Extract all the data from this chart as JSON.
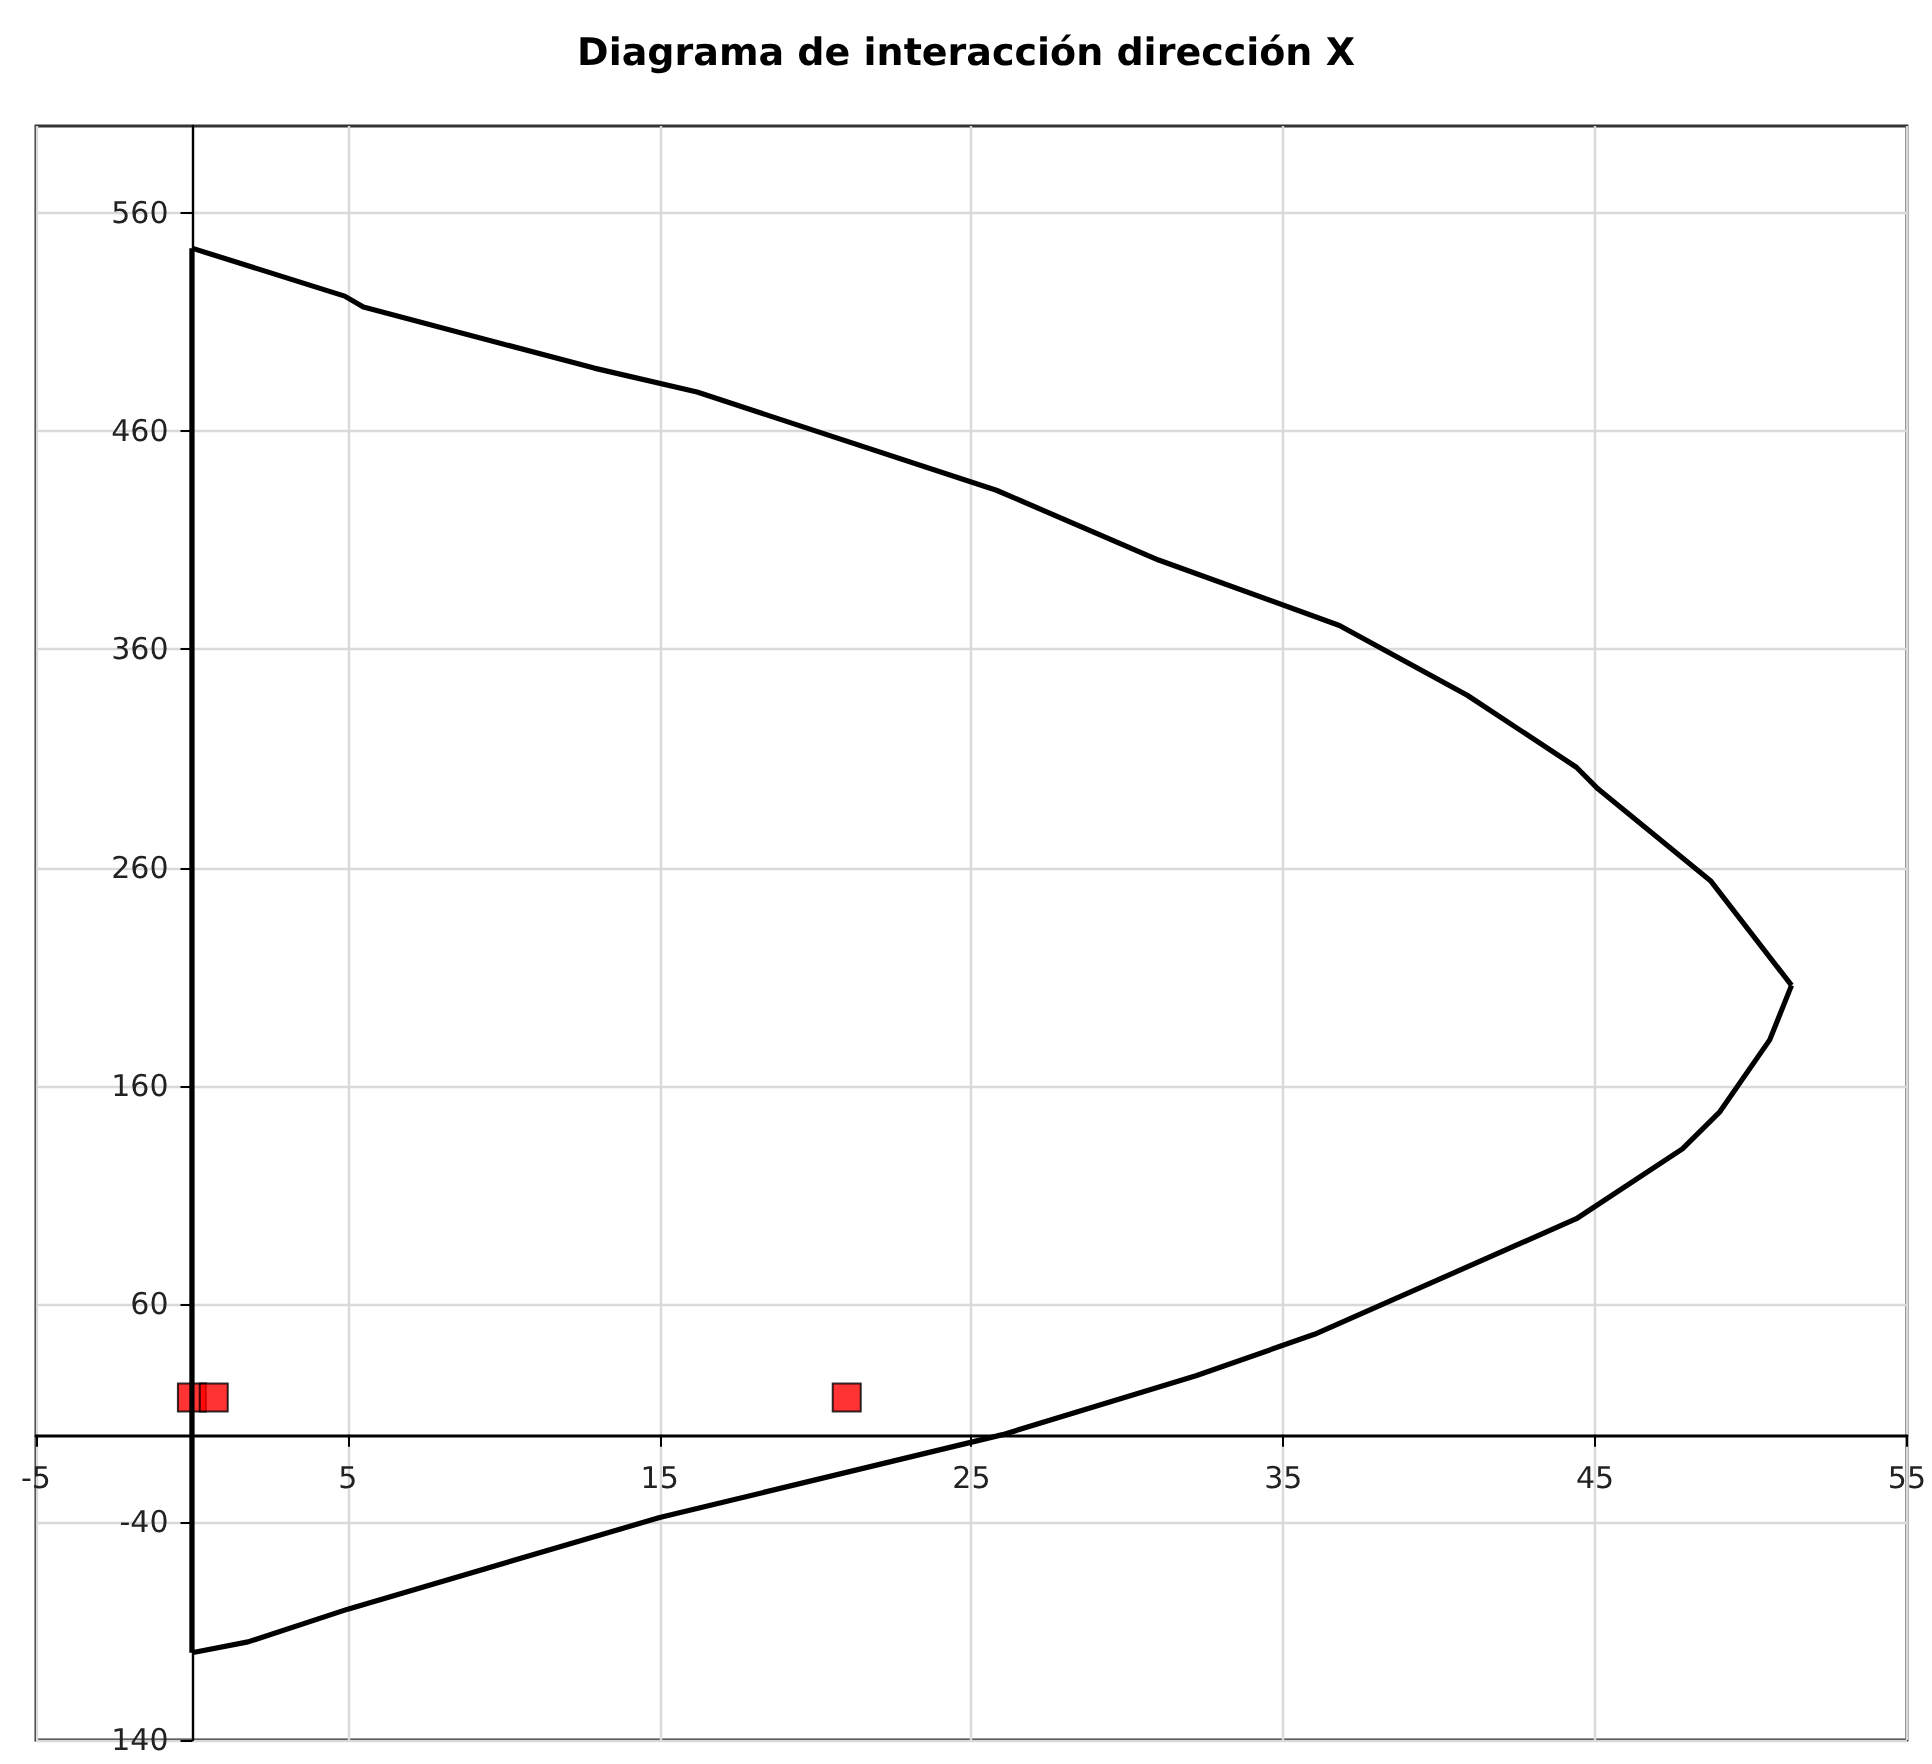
{
  "chart_data": {
    "type": "line",
    "title": "Diagrama de interacción dirección X",
    "xlim": [
      -5,
      55
    ],
    "xticks": [
      -5,
      5,
      15,
      25,
      35,
      45,
      55
    ],
    "ylim": [
      -140,
      600
    ],
    "yticks": [
      {
        "value": -140,
        "label": "140"
      },
      -40,
      60,
      160,
      260,
      360,
      460,
      560
    ],
    "grid": true,
    "series": [
      {
        "color": "#000000",
        "marker": "none",
        "x": [
          0,
          1.8,
          5,
          15,
          26,
          32.2,
          36,
          44.4,
          47.8,
          49,
          50.6,
          51.3
        ],
        "values": [
          -100,
          -95,
          -80,
          -38,
          0,
          27,
          46,
          99,
          131,
          148,
          181,
          206
        ]
      },
      {
        "color": "#000000",
        "marker": "none",
        "x": [
          0,
          4.9,
          5.5,
          12.9,
          16.2,
          25.8,
          31,
          36.8,
          40.9,
          44.4,
          45.1,
          48.7,
          51.3
        ],
        "values": [
          544,
          522,
          517,
          489,
          478,
          433,
          401,
          371,
          339,
          306,
          296,
          254,
          206
        ]
      },
      {
        "color": "#000000",
        "marker": "none",
        "x": [
          0,
          0
        ],
        "values": [
          -100,
          544
        ]
      },
      {
        "type": "scatter",
        "color": "#ff0000",
        "marker": "square",
        "x": [
          0,
          0.7,
          21
        ],
        "values": [
          17,
          17,
          17
        ]
      }
    ]
  }
}
